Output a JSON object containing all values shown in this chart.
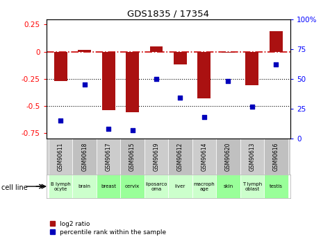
{
  "title": "GDS1835 / 17354",
  "gsm_labels": [
    "GSM90611",
    "GSM90618",
    "GSM90617",
    "GSM90615",
    "GSM90619",
    "GSM90612",
    "GSM90614",
    "GSM90620",
    "GSM90613",
    "GSM90616"
  ],
  "cell_lines": [
    "B lymph\nocyte",
    "brain",
    "breast",
    "cervix",
    "liposarco\noma",
    "liver",
    "macroph\nage",
    "skin",
    "T lymph\noblast",
    "testis"
  ],
  "cell_line_colors": [
    "#ccffcc",
    "#ccffcc",
    "#99ff99",
    "#99ff99",
    "#ccffcc",
    "#ccffcc",
    "#ccffcc",
    "#99ff99",
    "#ccffcc",
    "#99ff99"
  ],
  "log2_ratios": [
    -0.27,
    0.02,
    -0.54,
    -0.56,
    0.05,
    -0.12,
    -0.43,
    -0.01,
    -0.31,
    0.19
  ],
  "percentile_ranks": [
    15,
    45,
    8,
    7,
    50,
    34,
    18,
    48,
    27,
    62
  ],
  "ylim_left": [
    -0.8,
    0.3
  ],
  "ylim_right": [
    0,
    100
  ],
  "bar_color": "#aa1111",
  "dot_color": "#0000bb",
  "hline_color": "#cc0000",
  "dotted_line_color": "#000000",
  "bg_color": "#ffffff",
  "plot_bg": "#ffffff",
  "legend_log2": "log2 ratio",
  "legend_pct": "percentile rank within the sample",
  "cell_line_label": "cell line",
  "gsm_box_color": "#cccccc",
  "left_yticks": [
    0.25,
    0,
    -0.25,
    -0.5,
    -0.75
  ],
  "right_yticks": [
    100,
    75,
    50,
    25,
    0
  ]
}
